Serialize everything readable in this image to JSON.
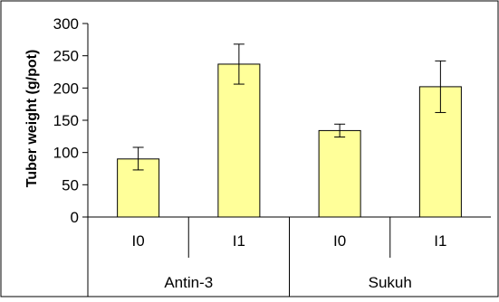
{
  "chart_data": {
    "type": "bar",
    "xlabel": "",
    "ylabel": "Tuber weight (g/pot)",
    "ylim": [
      0,
      300
    ],
    "yticks": [
      0,
      50,
      100,
      150,
      200,
      250,
      300
    ],
    "grid": false,
    "legend": "none",
    "categories": [
      "I0",
      "I1",
      "I0",
      "I1"
    ],
    "groups": [
      {
        "label": "Antin-3",
        "categories": [
          "I0",
          "I1"
        ]
      },
      {
        "label": "Sukuh",
        "categories": [
          "I0",
          "I1"
        ]
      }
    ],
    "values": [
      90,
      237,
      134,
      202
    ],
    "error_low": [
      73,
      206,
      124,
      162
    ],
    "error_high": [
      108,
      268,
      144,
      242
    ],
    "bar_color": "#ffff99",
    "bar_edge": "#000000"
  }
}
